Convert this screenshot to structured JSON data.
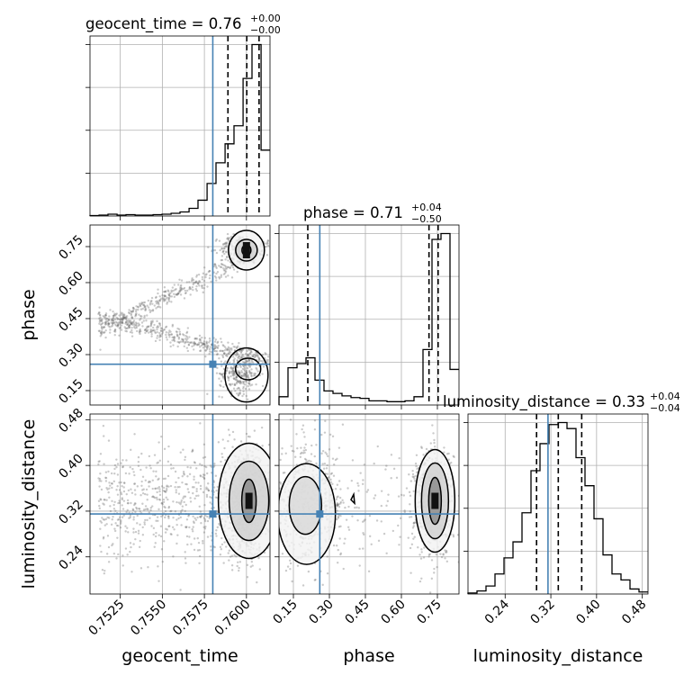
{
  "figure": {
    "title_geocent_main": "geocent_time = 0.76",
    "title_geocent_plus": "+0.00",
    "title_geocent_minus": "−0.00",
    "title_phase_main": "phase = 0.71",
    "title_phase_plus": "+0.04",
    "title_phase_minus": "−0.50",
    "title_lum_main": "luminosity_distance = 0.33",
    "title_lum_plus": "+0.04",
    "title_lum_minus": "−0.04",
    "xlabel_geocent": "geocent_time",
    "xlabel_phase": "phase",
    "xlabel_lum": "luminosity_distance",
    "ylabel_phase": "phase",
    "ylabel_lum": "luminosity_distance",
    "truth_color": "#4682b4",
    "hist_color": "#000000"
  },
  "chart_data": {
    "type": "corner",
    "parameters": [
      "geocent_time",
      "phase",
      "luminosity_distance"
    ],
    "truths": {
      "geocent_time": 0.758,
      "phase": 0.26,
      "luminosity_distance": 0.315
    },
    "ranges": {
      "geocent_time": [
        0.7507,
        0.7614
      ],
      "phase": [
        0.09,
        0.84
      ],
      "luminosity_distance": [
        0.175,
        0.49
      ]
    },
    "ticks": {
      "geocent_time": {
        "values": [
          0.7525,
          0.755,
          0.7575,
          0.76
        ],
        "labels": [
          "0.7525",
          "0.7550",
          "0.7575",
          "0.7600"
        ]
      },
      "phase": {
        "values": [
          0.15,
          0.3,
          0.45,
          0.6,
          0.75
        ],
        "labels": [
          "0.15",
          "0.30",
          "0.45",
          "0.60",
          "0.75"
        ]
      },
      "luminosity_distance": {
        "values": [
          0.24,
          0.32,
          0.4,
          0.48
        ],
        "labels": [
          "0.24",
          "0.32",
          "0.40",
          "0.48"
        ]
      }
    },
    "histograms": {
      "geocent_time": {
        "edges": [
          0.7507,
          0.75124,
          0.75177,
          0.75231,
          0.75284,
          0.75338,
          0.75391,
          0.75445,
          0.75498,
          0.75552,
          0.75605,
          0.75659,
          0.75712,
          0.75766,
          0.75819,
          0.75873,
          0.75926,
          0.7598,
          0.76033,
          0.76087,
          0.7614
        ],
        "counts": [
          1,
          2,
          4,
          2,
          3,
          2,
          2,
          3,
          4,
          6,
          9,
          17,
          35,
          72,
          118,
          160,
          200,
          305,
          380,
          146
        ],
        "quantiles": [
          0.7589,
          0.76002,
          0.76075
        ]
      },
      "phase": {
        "edges": [
          0.09,
          0.1275,
          0.165,
          0.2025,
          0.24,
          0.2775,
          0.315,
          0.3525,
          0.39,
          0.4275,
          0.465,
          0.5025,
          0.54,
          0.5775,
          0.615,
          0.6525,
          0.69,
          0.7275,
          0.765,
          0.8025,
          0.84
        ],
        "counts": [
          10,
          45,
          50,
          57,
          30,
          17,
          14,
          11,
          9,
          8,
          5,
          5,
          4,
          4,
          5,
          10,
          67,
          200,
          207,
          43
        ],
        "quantiles": [
          0.21,
          0.715,
          0.753
        ]
      },
      "luminosity_distance": {
        "edges": [
          0.175,
          0.19075,
          0.2065,
          0.22225,
          0.238,
          0.25375,
          0.2695,
          0.28525,
          0.301,
          0.31675,
          0.3325,
          0.34825,
          0.364,
          0.37975,
          0.3955,
          0.41125,
          0.427,
          0.44275,
          0.4585,
          0.47425,
          0.49
        ],
        "counts": [
          1,
          3,
          8,
          20,
          36,
          52,
          81,
          123,
          150,
          169,
          171,
          165,
          136,
          108,
          75,
          39,
          20,
          14,
          5,
          2
        ],
        "quantiles": [
          0.295,
          0.333,
          0.374
        ]
      }
    }
  }
}
